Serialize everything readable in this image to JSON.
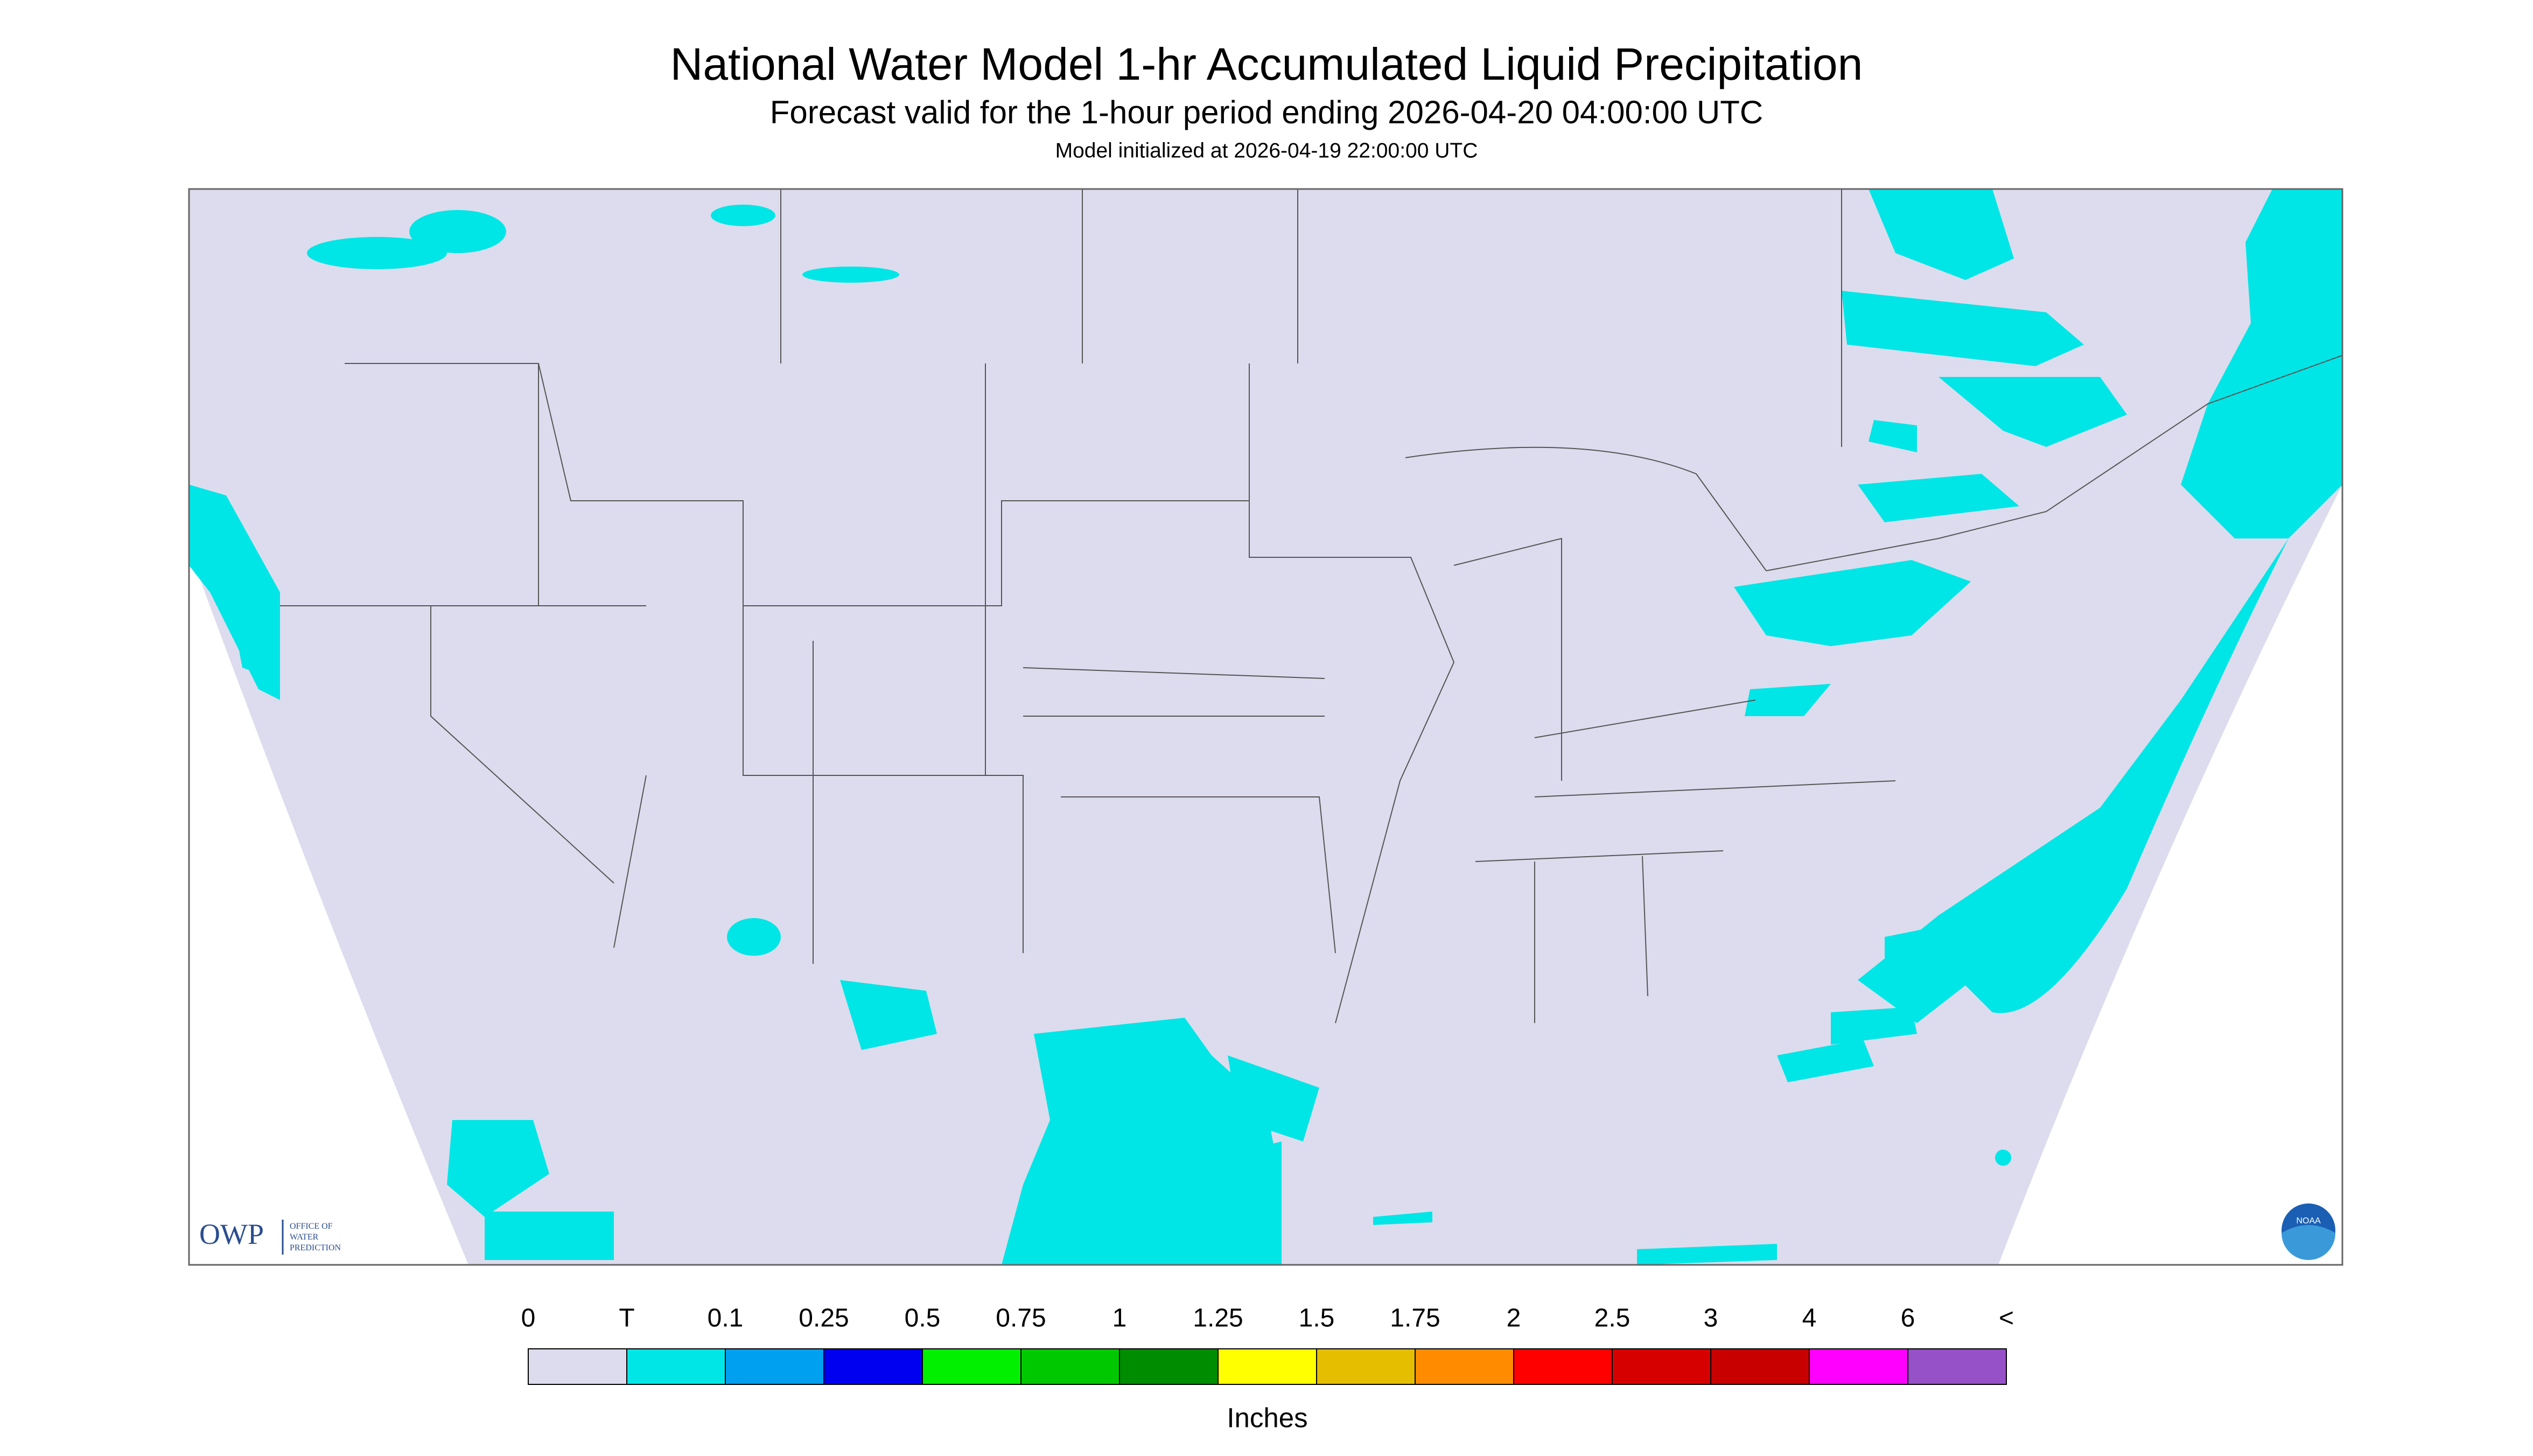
{
  "header": {
    "title": "National Water Model 1-hr Accumulated Liquid Precipitation",
    "subtitle": "Forecast valid for the 1-hour period ending 2026-04-20 04:00:00 UTC",
    "initialized": "Model initialized at 2026-04-19 22:00:00 UTC"
  },
  "logos": {
    "owp": "OWP",
    "owp_full": [
      "OFFICE OF",
      "WATER",
      "PREDICTION"
    ],
    "noaa": "NOAA"
  },
  "legend": {
    "labels": [
      "0",
      "T",
      "0.1",
      "0.25",
      "0.5",
      "0.75",
      "1",
      "1.25",
      "1.5",
      "1.75",
      "2",
      "2.5",
      "3",
      "4",
      "6",
      "<"
    ],
    "colors": [
      "#dcdcee",
      "#00e6e6",
      "#00a0f0",
      "#0000f0",
      "#00f000",
      "#00c800",
      "#008c00",
      "#ffff00",
      "#e6be00",
      "#ff8c00",
      "#ff0000",
      "#d70000",
      "#c80000",
      "#ff00ff",
      "#9650c8"
    ],
    "unit": "Inches"
  }
}
